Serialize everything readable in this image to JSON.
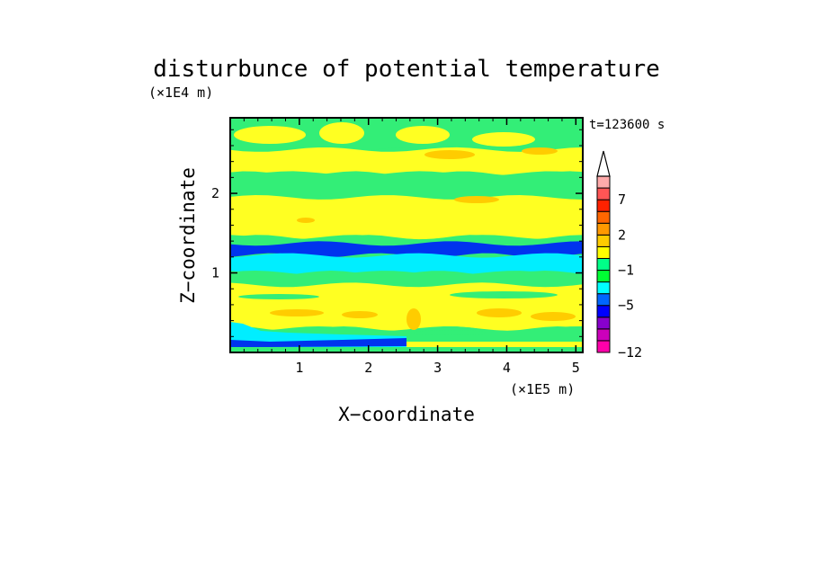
{
  "chart_data": {
    "type": "heatmap",
    "title": "disturbunce of potential temperature",
    "xlabel": "X−coordinate",
    "ylabel": "Z−coordinate",
    "x_unit": "(×1E5 m)",
    "y_unit": "(×1E4 m)",
    "time_label": "t=123600 s",
    "xlim": [
      0.0,
      5.1
    ],
    "ylim": [
      0.0,
      2.95
    ],
    "x_ticks": [
      "1",
      "2",
      "3",
      "4",
      "5"
    ],
    "y_ticks": [
      "1",
      "2"
    ],
    "legend_levels": [
      -12,
      -11,
      -9,
      -7,
      -5,
      -3,
      -2,
      -1,
      0,
      1,
      2,
      3,
      5,
      7,
      9,
      11
    ],
    "legend_labels": [
      "7",
      "2",
      "−1",
      "−5",
      "−12"
    ],
    "legend_label_values": [
      7,
      2,
      -1,
      -5,
      -12
    ],
    "legend_colors": [
      "#ff00aa",
      "#cc00bb",
      "#8800cc",
      "#0000ff",
      "#0066ff",
      "#00ffff",
      "#00ff33",
      "#00ff88",
      "#ffff00",
      "#ffcc00",
      "#ff9900",
      "#ff6600",
      "#ff2200",
      "#ff5555",
      "#ffaaaa"
    ],
    "bands": [
      {
        "z": [
          2.55,
          2.95
        ],
        "value": "~0",
        "color": "#33ee77"
      },
      {
        "z": [
          2.25,
          2.55
        ],
        "value": "0 to 1",
        "color": "#ffff22"
      },
      {
        "z": [
          1.95,
          2.25
        ],
        "value": "~0",
        "color": "#33ee77"
      },
      {
        "z": [
          1.45,
          1.95
        ],
        "value": "0 to 1",
        "color": "#ffff22"
      },
      {
        "z": [
          1.37,
          1.45
        ],
        "value": "~0",
        "color": "#33ee77"
      },
      {
        "z": [
          1.22,
          1.37
        ],
        "value": "-3 to -5",
        "color": "#0033ee"
      },
      {
        "z": [
          1.0,
          1.22
        ],
        "value": "-1 to -2",
        "color": "#00eeff"
      },
      {
        "z": [
          0.85,
          1.0
        ],
        "value": "~0",
        "color": "#33ee77"
      },
      {
        "z": [
          0.3,
          0.85
        ],
        "value": "0 to 2",
        "color": "#ffff22"
      },
      {
        "z": [
          0.0,
          0.3
        ],
        "value": "-1 to 0",
        "color": "#33ee77"
      }
    ]
  }
}
